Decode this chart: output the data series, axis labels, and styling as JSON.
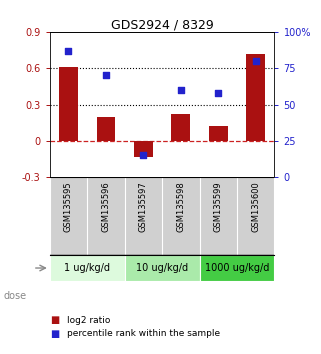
{
  "title": "GDS2924 / 8329",
  "categories": [
    "GSM135595",
    "GSM135596",
    "GSM135597",
    "GSM135598",
    "GSM135599",
    "GSM135600"
  ],
  "log2_ratio": [
    0.61,
    0.2,
    -0.13,
    0.22,
    0.12,
    0.72
  ],
  "percentile_rank": [
    87,
    70,
    15,
    60,
    58,
    80
  ],
  "left_ylim": [
    -0.3,
    0.9
  ],
  "right_ylim": [
    0,
    100
  ],
  "left_yticks": [
    -0.3,
    0.0,
    0.3,
    0.6,
    0.9
  ],
  "right_yticks": [
    0,
    25,
    50,
    75,
    100
  ],
  "left_ytick_labels": [
    "-0.3",
    "0",
    "0.3",
    "0.6",
    "0.9"
  ],
  "right_ytick_labels": [
    "0",
    "25",
    "50",
    "75",
    "100%"
  ],
  "hline_y": [
    0.3,
    0.6
  ],
  "bar_color": "#aa1111",
  "scatter_color": "#2222cc",
  "zero_line_color": "#cc2222",
  "dose_groups": [
    {
      "label": "1 ug/kg/d",
      "cols": [
        0,
        1
      ],
      "color": "#ddfadd"
    },
    {
      "label": "10 ug/kg/d",
      "cols": [
        2,
        3
      ],
      "color": "#aaeaaa"
    },
    {
      "label": "1000 ug/kg/d",
      "cols": [
        4,
        5
      ],
      "color": "#44cc44"
    }
  ],
  "dose_label": "dose",
  "legend_bar_label": "log2 ratio",
  "legend_scatter_label": "percentile rank within the sample",
  "bar_width": 0.5,
  "label_bg": "#d0d0d0",
  "border_color": "#888888"
}
